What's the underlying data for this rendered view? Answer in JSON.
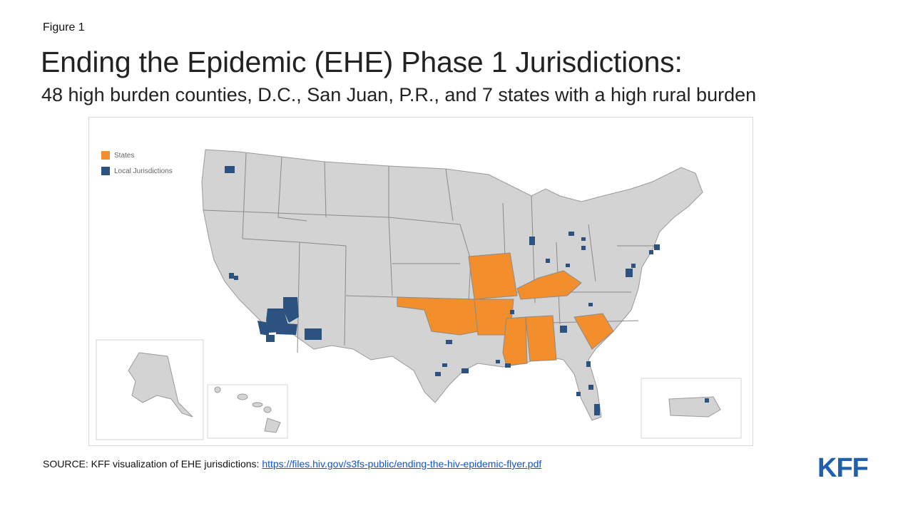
{
  "figure_label": "Figure 1",
  "title": "Ending the Epidemic (EHE) Phase 1 Jurisdictions:",
  "subtitle": "48 high burden counties, D.C., San Juan, P.R., and 7 states with a high rural burden",
  "legend": {
    "states_label": "States",
    "local_label": "Local Jurisdictions"
  },
  "colors": {
    "states": "#f28e2b",
    "local": "#2c5282",
    "base": "#d3d3d3",
    "border": "#8a8a8a"
  },
  "highlighted_states": [
    "Oklahoma",
    "Missouri",
    "Arkansas",
    "Kentucky",
    "Mississippi",
    "Alabama",
    "South Carolina"
  ],
  "source": {
    "prefix": "SOURCE: KFF visualization of EHE jurisdictions: ",
    "link_text": "https://files.hiv.gov/s3fs-public/ending-the-hiv-epidemic-flyer.pdf"
  },
  "logo": "KFF"
}
